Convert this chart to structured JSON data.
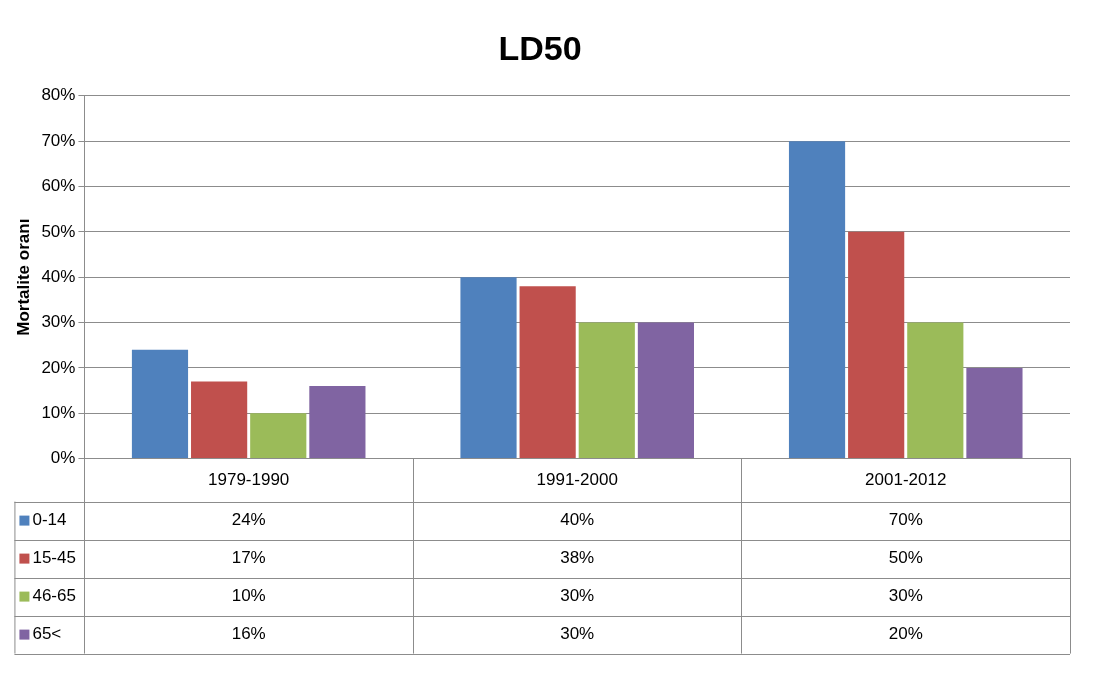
{
  "chart_data": {
    "type": "bar",
    "title": "LD50",
    "ylabel": "Mortalite oranı",
    "categories": [
      "1979-1990",
      "1991-2000",
      "2001-2012"
    ],
    "series": [
      {
        "name": "0-14",
        "color": "#4f81bd",
        "values": [
          24,
          40,
          70
        ],
        "value_labels": [
          "24%",
          "40%",
          "70%"
        ]
      },
      {
        "name": "15-45",
        "color": "#c0504d",
        "values": [
          17,
          38,
          50
        ],
        "value_labels": [
          "17%",
          "38%",
          "50%"
        ]
      },
      {
        "name": "46-65",
        "color": "#9bbb59",
        "values": [
          10,
          30,
          30
        ],
        "value_labels": [
          "10%",
          "30%",
          "30%"
        ]
      },
      {
        "name": "65<",
        "color": "#8064a2",
        "values": [
          16,
          30,
          20
        ],
        "value_labels": [
          "16%",
          "30%",
          "20%"
        ]
      }
    ],
    "ylim": [
      0,
      80
    ],
    "yticks": [
      {
        "value": 0,
        "label": "0%"
      },
      {
        "value": 10,
        "label": "10%"
      },
      {
        "value": 20,
        "label": "20%"
      },
      {
        "value": 30,
        "label": "30%"
      },
      {
        "value": 40,
        "label": "40%"
      },
      {
        "value": 50,
        "label": "50%"
      },
      {
        "value": 60,
        "label": "60%"
      },
      {
        "value": 70,
        "label": "70%"
      },
      {
        "value": 80,
        "label": "80%"
      }
    ],
    "grid": "y",
    "legend": "bottom"
  }
}
